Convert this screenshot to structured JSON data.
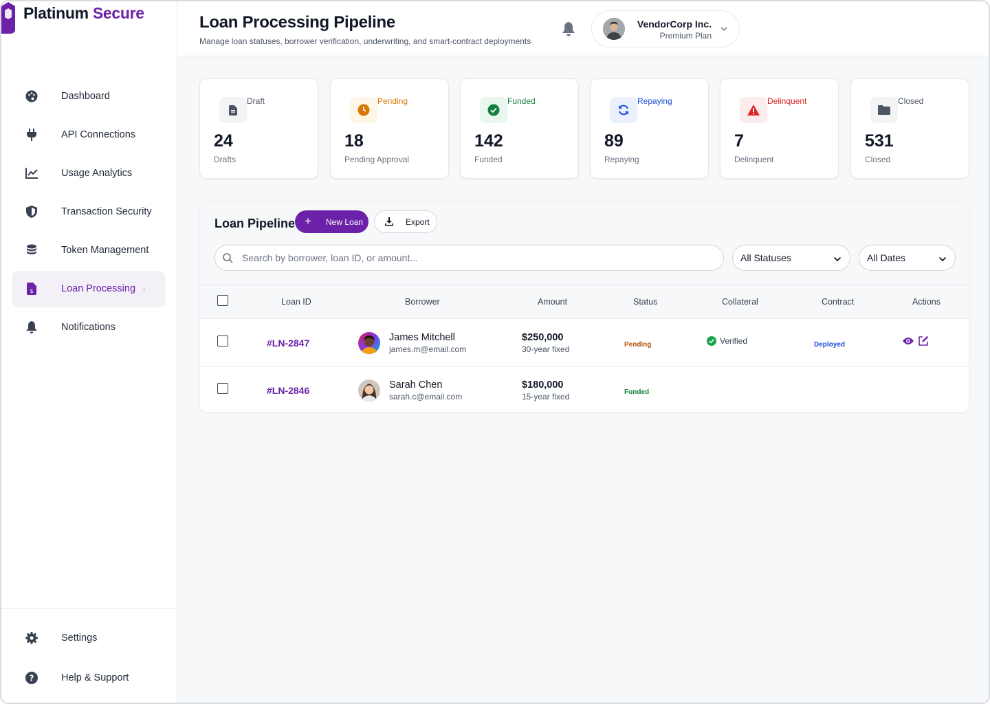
{
  "brand": {
    "name_part1": "Platinum",
    "name_part2": "Secure",
    "color": "#6b21a8"
  },
  "sidebar": {
    "items": [
      {
        "label": "Dashboard",
        "icon": "palette-icon"
      },
      {
        "label": "API Connections",
        "icon": "plug-icon"
      },
      {
        "label": "Usage Analytics",
        "icon": "line-chart-icon"
      },
      {
        "label": "Transaction Security",
        "icon": "shield-icon"
      },
      {
        "label": "Token Management",
        "icon": "coins-icon"
      },
      {
        "label": "Loan Processing",
        "icon": "invoice-dollar-icon",
        "active": true
      },
      {
        "label": "Notifications",
        "icon": "bell-icon"
      }
    ],
    "bottom": [
      {
        "label": "Settings",
        "icon": "gear-icon"
      },
      {
        "label": "Help & Support",
        "icon": "question-circle-icon"
      }
    ],
    "active_chevron": "›"
  },
  "header": {
    "title": "Loan Processing Pipeline",
    "subtitle": "Manage loan statuses, borrower verification, underwriting, and smart-contract deployments",
    "account": {
      "name": "VendorCorp Inc.",
      "plan": "Premium Plan"
    }
  },
  "stats": [
    {
      "tag": "Draft",
      "value": "24",
      "label": "Drafts",
      "color": "#4b5563",
      "bg": "#f3f4f6",
      "icon": "file-icon"
    },
    {
      "tag": "Pending",
      "value": "18",
      "label": "Pending Approval",
      "color": "#d97706",
      "bg": "#fef6e7",
      "icon": "clock-icon"
    },
    {
      "tag": "Funded",
      "value": "142",
      "label": "Funded",
      "color": "#15803d",
      "bg": "#eaf7ef",
      "icon": "check-circle-icon"
    },
    {
      "tag": "Repaying",
      "value": "89",
      "label": "Repaying",
      "color": "#1d4ed8",
      "bg": "#eaf1fd",
      "icon": "sync-icon"
    },
    {
      "tag": "Delinquent",
      "value": "7",
      "label": "Delinquent",
      "color": "#dc2626",
      "bg": "#fdecec",
      "icon": "warning-icon"
    },
    {
      "tag": "Closed",
      "value": "531",
      "label": "Closed",
      "color": "#4b5563",
      "bg": "#f3f4f6",
      "icon": "folder-icon"
    }
  ],
  "pipeline": {
    "title": "Loan Pipeline",
    "new_label": "New Loan",
    "export_label": "Export",
    "search_placeholder": "Search by borrower, loan ID, or amount...",
    "status_filter": "All Statuses",
    "date_filter": "All Dates",
    "columns": [
      "Loan ID",
      "Borrower",
      "Amount",
      "Status",
      "Collateral",
      "Contract",
      "Actions"
    ],
    "rows": [
      {
        "id": "#LN-2847",
        "name": "James Mitchell",
        "email": "james.m@email.com",
        "amount": "$250,000",
        "term": "30-year fixed",
        "status": "Pending",
        "status_color": "#b45309",
        "collateral": "Verified",
        "contract": "Deployed"
      },
      {
        "id": "#LN-2846",
        "name": "Sarah Chen",
        "email": "sarah.c@email.com",
        "amount": "$180,000",
        "term": "15-year fixed",
        "status": "Funded",
        "status_color": "#15803d"
      }
    ]
  }
}
